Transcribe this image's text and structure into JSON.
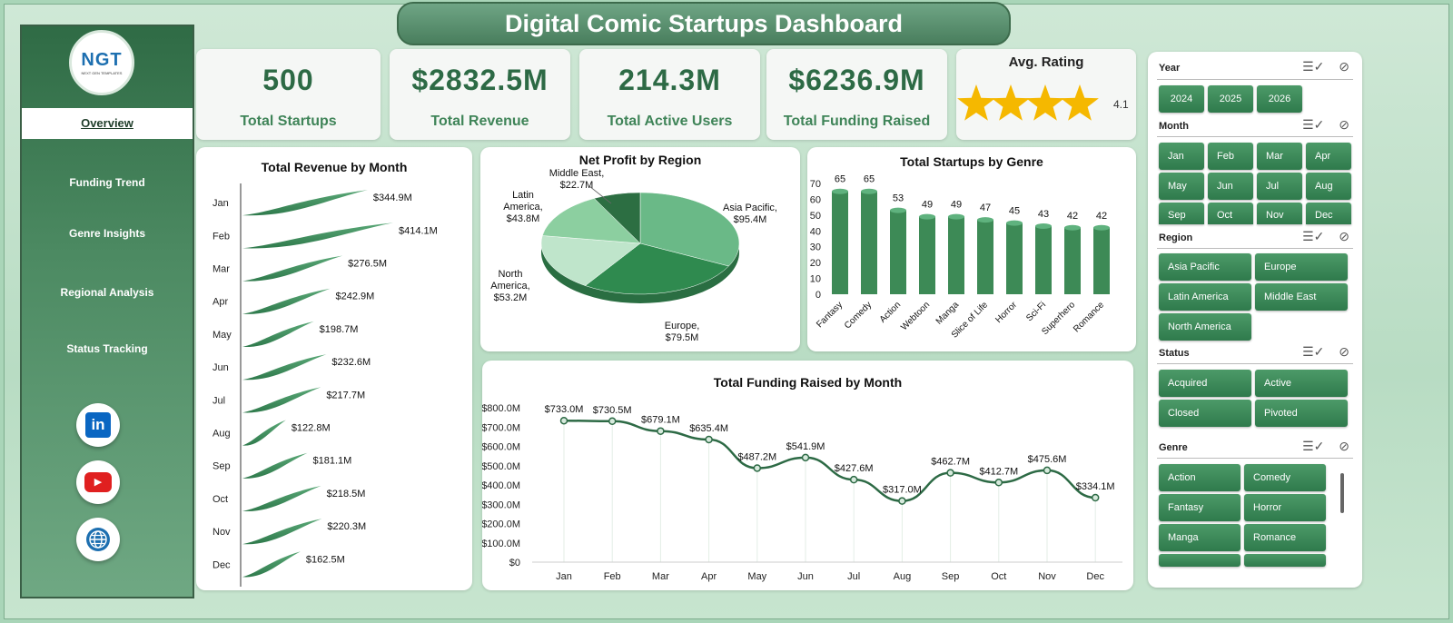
{
  "title": "Digital Comic Startups Dashboard",
  "logo": {
    "text": "NGT",
    "subtext": "NEXT GEN TEMPLATES"
  },
  "nav": [
    {
      "label": "Overview",
      "active": true
    },
    {
      "label": "Funding Trend"
    },
    {
      "label": "Genre Insights"
    },
    {
      "label": "Regional Analysis"
    },
    {
      "label": "Status Tracking"
    }
  ],
  "social": [
    {
      "icon": "linkedin-icon",
      "glyph": "in",
      "color": "#0a66c2"
    },
    {
      "icon": "youtube-icon",
      "glyph": "▶",
      "color": "#e02020"
    },
    {
      "icon": "globe-icon",
      "glyph": "🌐",
      "color": "#1d6fb0"
    }
  ],
  "kpis": [
    {
      "value": "500",
      "label": "Total Startups"
    },
    {
      "value": "$2832.5M",
      "label": "Total Revenue"
    },
    {
      "value": "214.3M",
      "label": "Total Active Users"
    },
    {
      "value": "$6236.9M",
      "label": "Total Funding Raised"
    }
  ],
  "rating": {
    "title": "Avg. Rating",
    "value": "4.1",
    "stars": 4,
    "star_color": "#f5b800"
  },
  "charts": {
    "revenue_title": "Total Revenue  by Month",
    "profit_title": "Net Profit by Region",
    "genre_title": "Total Startups by Genre",
    "funding_title": "Total Funding Raised by Month"
  },
  "chart_data": [
    {
      "type": "bar",
      "title": "Total Revenue  by Month",
      "orientation": "horizontal",
      "categories": [
        "Jan",
        "Feb",
        "Mar",
        "Apr",
        "May",
        "Jun",
        "Jul",
        "Aug",
        "Sep",
        "Oct",
        "Nov",
        "Dec"
      ],
      "values": [
        344.9,
        414.1,
        276.5,
        242.9,
        198.7,
        232.6,
        217.7,
        122.8,
        181.1,
        218.5,
        220.3,
        162.5
      ],
      "labels": [
        "$344.9M",
        "$414.1M",
        "$276.5M",
        "$242.9M",
        "$198.7M",
        "$232.6M",
        "$217.7M",
        "$122.8M",
        "$181.1M",
        "$218.5M",
        "$220.3M",
        "$162.5M"
      ]
    },
    {
      "type": "pie",
      "title": "Net Profit by Region",
      "categories": [
        "Asia Pacific",
        "Europe",
        "North America",
        "Latin America",
        "Middle East"
      ],
      "values": [
        95.4,
        79.5,
        53.2,
        43.8,
        22.7
      ],
      "labels": [
        "Asia Pacific,\n$95.4M",
        "Europe,\n$79.5M",
        "North\nAmerica,\n$53.2M",
        "Latin\nAmerica,\n$43.8M",
        "Middle East,\n$22.7M"
      ]
    },
    {
      "type": "bar",
      "title": "Total Startups by Genre",
      "categories": [
        "Fantasy",
        "Comedy",
        "Action",
        "Webtoon",
        "Manga",
        "Slice of Life",
        "Horror",
        "Sci-Fi",
        "Superhero",
        "Romance"
      ],
      "values": [
        65,
        65,
        53,
        49,
        49,
        47,
        45,
        43,
        42,
        42
      ],
      "ylim": [
        0,
        70
      ],
      "yticks": [
        0,
        10,
        20,
        30,
        40,
        50,
        60,
        70
      ]
    },
    {
      "type": "line",
      "title": "Total Funding Raised by Month",
      "categories": [
        "Jan",
        "Feb",
        "Mar",
        "Apr",
        "May",
        "Jun",
        "Jul",
        "Aug",
        "Sep",
        "Oct",
        "Nov",
        "Dec"
      ],
      "values": [
        733.0,
        730.5,
        679.1,
        635.4,
        487.2,
        541.9,
        427.6,
        317.0,
        462.7,
        412.7,
        475.6,
        334.1
      ],
      "labels": [
        "$733.0M",
        "$730.5M",
        "$679.1M",
        "$635.4M",
        "$487.2M",
        "$541.9M",
        "$427.6M",
        "$317.0M",
        "$462.7M",
        "$412.7M",
        "$475.6M",
        "$334.1M"
      ],
      "ylim": [
        0,
        800
      ],
      "yticks": [
        "$0",
        "$100.0M",
        "$200.0M",
        "$300.0M",
        "$400.0M",
        "$500.0M",
        "$600.0M",
        "$700.0M",
        "$800.0M"
      ]
    }
  ],
  "filters": {
    "year": {
      "title": "Year",
      "options": [
        "2024",
        "2025",
        "2026"
      ]
    },
    "month": {
      "title": "Month",
      "options": [
        "Jan",
        "Feb",
        "Mar",
        "Apr",
        "May",
        "Jun",
        "Jul",
        "Aug",
        "Sep",
        "Oct",
        "Nov",
        "Dec"
      ]
    },
    "region": {
      "title": "Region",
      "options": [
        "Asia Pacific",
        "Europe",
        "Latin America",
        "Middle East",
        "North America"
      ]
    },
    "status": {
      "title": "Status",
      "options": [
        "Acquired",
        "Active",
        "Closed",
        "Pivoted"
      ]
    },
    "genre": {
      "title": "Genre",
      "options": [
        "Action",
        "Comedy",
        "Fantasy",
        "Horror",
        "Manga",
        "Romance"
      ]
    },
    "icons": {
      "multiselect": "☰✓",
      "clear": "⊘"
    }
  },
  "colors": {
    "dark_green": "#2d6a45",
    "mid_green": "#3f8458",
    "accent": "#4c9a68"
  }
}
